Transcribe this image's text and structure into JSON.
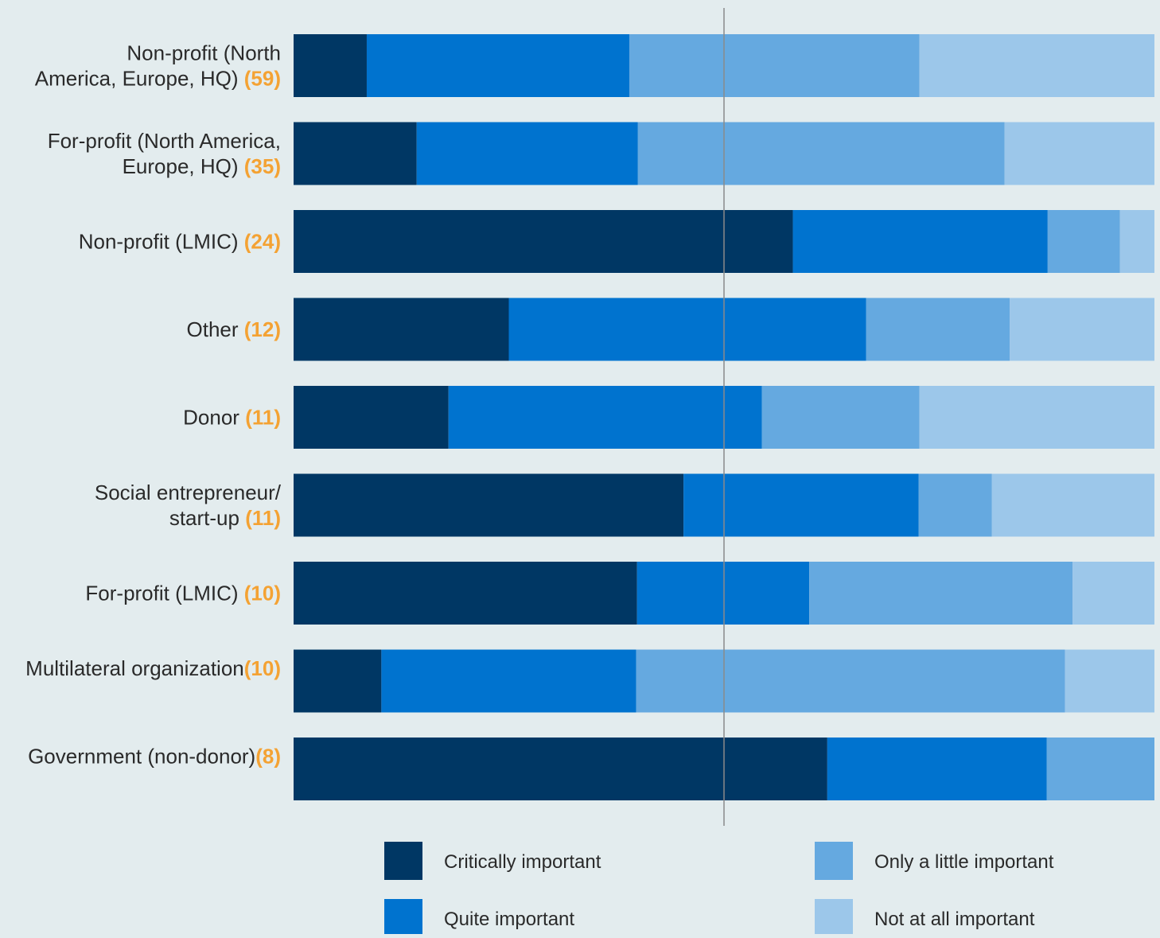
{
  "chart_data": {
    "type": "bar",
    "orientation": "horizontal",
    "stacked": "percent",
    "title": "",
    "xlabel": "",
    "ylabel": "",
    "xlim": [
      0,
      100
    ],
    "reference_line": 50,
    "grid": false,
    "legend_placement": "bottom",
    "categories": [
      {
        "lines": [
          "Non-profit (North",
          "America, Europe, HQ)"
        ],
        "count": "(59)"
      },
      {
        "lines": [
          "For-profit (North America,",
          "Europe, HQ)"
        ],
        "count": "(35)"
      },
      {
        "lines": [
          "Non-profit (LMIC)"
        ],
        "count": "(24)"
      },
      {
        "lines": [
          "Other"
        ],
        "count": "(12)"
      },
      {
        "lines": [
          "Donor"
        ],
        "count": "(11)"
      },
      {
        "lines": [
          "Social entrepreneur/",
          "start-up"
        ],
        "count": "(11)"
      },
      {
        "lines": [
          "For-profit (LMIC)"
        ],
        "count": "(10)"
      },
      {
        "lines": [
          "Multilateral organization",
          ""
        ],
        "count": "(10)"
      },
      {
        "lines": [
          "Government (non-donor)",
          ""
        ],
        "count": "(8)"
      }
    ],
    "series": [
      {
        "name": "Critically important",
        "color": "#003764",
        "values": [
          8.5,
          14.3,
          58.0,
          25.0,
          18.0,
          45.3,
          39.9,
          10.2,
          62.0
        ]
      },
      {
        "name": "Quite important",
        "color": "#0073cf",
        "values": [
          30.5,
          25.7,
          29.6,
          41.5,
          36.4,
          27.3,
          20.0,
          29.6,
          25.5
        ]
      },
      {
        "name": "Only a little important",
        "color": "#65a9e0",
        "values": [
          33.7,
          42.6,
          8.4,
          16.7,
          18.3,
          8.5,
          30.6,
          49.8,
          12.5
        ]
      },
      {
        "name": "Not at all important",
        "color": "#9cc7ea",
        "values": [
          27.3,
          17.4,
          4.0,
          16.8,
          27.3,
          18.9,
          9.5,
          10.4,
          0.0
        ]
      }
    ],
    "colors": {
      "count_label": "#f4a233",
      "reference_line": "#8a8a8a",
      "background": "#e3ecee"
    }
  }
}
